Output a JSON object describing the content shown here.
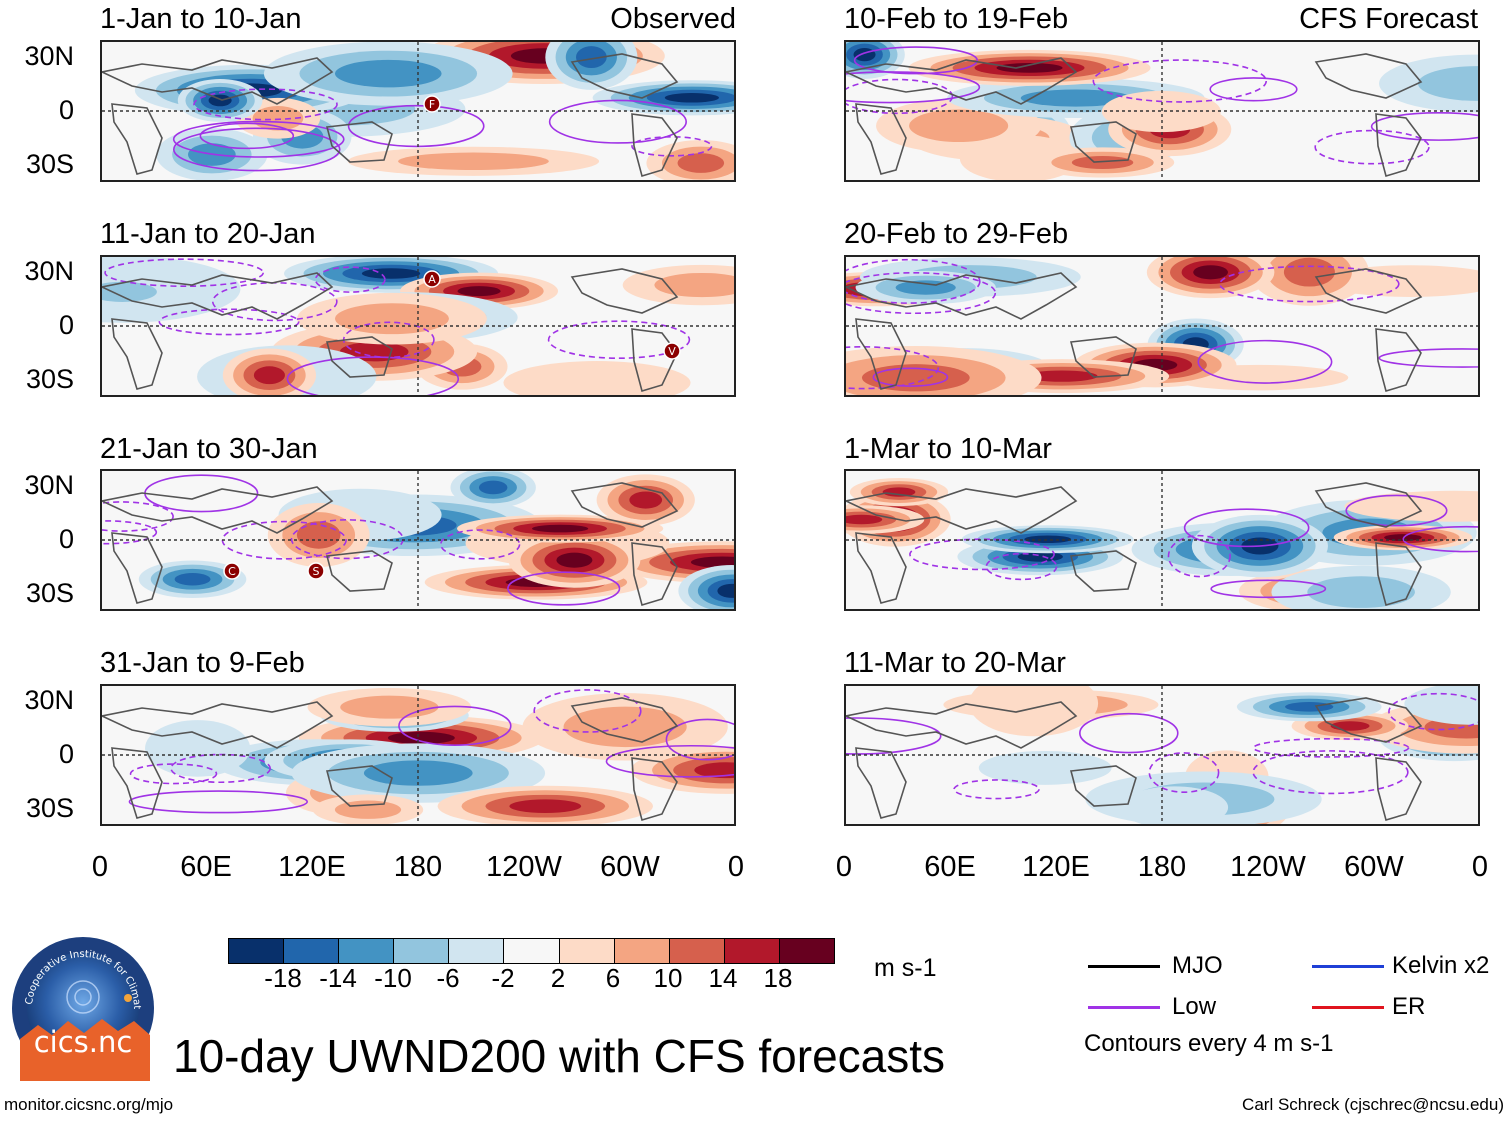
{
  "chart_data": {
    "type": "heatmap",
    "title": "10-day UWND200 with CFS forecasts",
    "variable": "UWND200",
    "units": "m s-1",
    "contour_note": "Contours every 4 m s-1",
    "lat_ticks": [
      "30N",
      "0",
      "30S"
    ],
    "lon_ticks": [
      "0",
      "60E",
      "120E",
      "180",
      "120W",
      "60W",
      "0"
    ],
    "colorbar": {
      "levels": [
        "-18",
        "-14",
        "-10",
        "-6",
        "-2",
        "2",
        "6",
        "10",
        "14",
        "18"
      ],
      "colors": [
        "#08306b",
        "#2166ac",
        "#4393c3",
        "#92c5de",
        "#d1e5f0",
        "#f7f7f7",
        "#fddbc7",
        "#f4a582",
        "#d6604d",
        "#b2182b",
        "#67001f"
      ]
    },
    "legend": [
      {
        "label": "MJO",
        "color": "#000000"
      },
      {
        "label": "Kelvin x2",
        "color": "#1f3fd6"
      },
      {
        "label": "Low",
        "color": "#a033e6"
      },
      {
        "label": "ER",
        "color": "#e0141e"
      }
    ],
    "panels": [
      {
        "label": "1-Jan to 10-Jan",
        "tag": "Observed",
        "column": "observed",
        "storms": [
          "F"
        ]
      },
      {
        "label": "11-Jan to 20-Jan",
        "tag": "",
        "column": "observed",
        "storms": [
          "A",
          "V"
        ]
      },
      {
        "label": "21-Jan to 30-Jan",
        "tag": "",
        "column": "observed",
        "storms": [
          "C",
          "S"
        ]
      },
      {
        "label": "31-Jan to 9-Feb",
        "tag": "",
        "column": "observed",
        "storms": []
      },
      {
        "label": "10-Feb to 19-Feb",
        "tag": "CFS Forecast",
        "column": "forecast",
        "storms": []
      },
      {
        "label": "20-Feb to 29-Feb",
        "tag": "",
        "column": "forecast",
        "storms": []
      },
      {
        "label": "1-Mar to 10-Mar",
        "tag": "",
        "column": "forecast",
        "storms": []
      },
      {
        "label": "11-Mar to 20-Mar",
        "tag": "",
        "column": "forecast",
        "storms": []
      }
    ]
  },
  "logo": {
    "text": "cics.nc",
    "ring_text": "Cooperative Institute for Climate and Satellites"
  },
  "footer": {
    "left": "monitor.cicsnc.org/mjo",
    "right": "Carl Schreck (cjschrec@ncsu.edu)"
  }
}
